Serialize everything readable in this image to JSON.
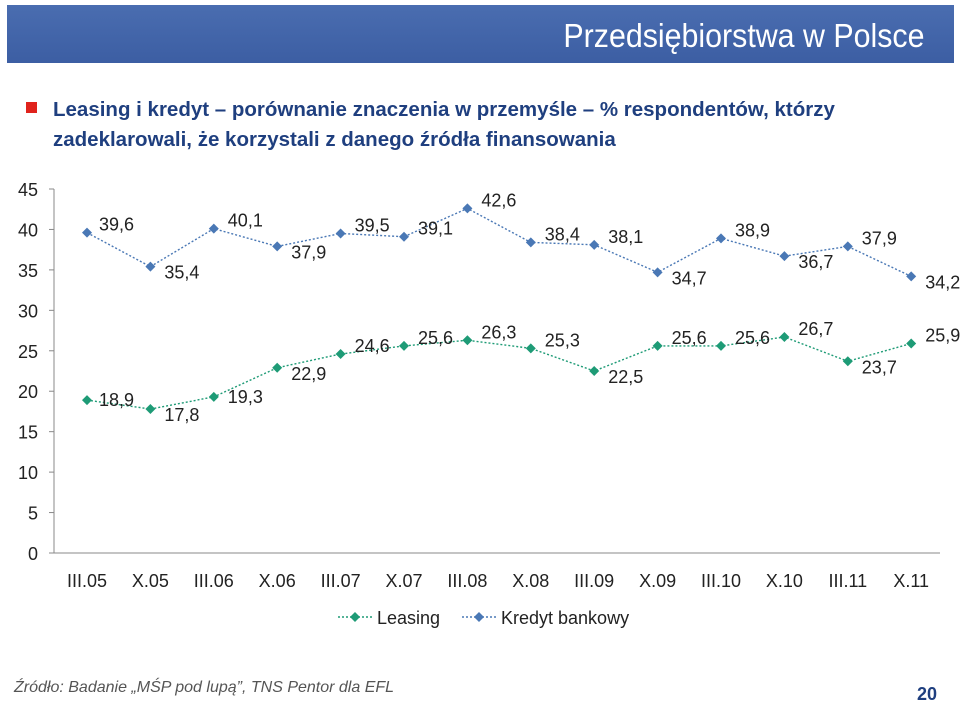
{
  "header": {
    "title": "Przedsiębiorstwa w Polsce",
    "color": "#3f62a8"
  },
  "subtitle": {
    "line1": "Leasing i kredyt – porównanie znaczenia w  przemyśle –  % respondentów, którzy",
    "line2": "zadeklarowali, że korzystali z danego źródła finansowania"
  },
  "chart_data": {
    "type": "line",
    "categories": [
      "III.05",
      "X.05",
      "III.06",
      "X.06",
      "III.07",
      "X.07",
      "III.08",
      "X.08",
      "III.09",
      "X.09",
      "III.10",
      "X.10",
      "III.11",
      "X.11"
    ],
    "series": [
      {
        "name": "Leasing",
        "color": "#1e9b76",
        "values": [
          18.9,
          17.8,
          19.3,
          22.9,
          24.6,
          25.6,
          26.3,
          25.3,
          22.5,
          25.6,
          25.6,
          26.7,
          23.7,
          25.9
        ],
        "labels": [
          "18,9",
          "17,8",
          "19,3",
          "22,9",
          "24,6",
          "25,6",
          "26,3",
          "25,3",
          "22,5",
          "25,6",
          "25,6",
          "26,7",
          "23,7",
          "25,9"
        ]
      },
      {
        "name": "Kredyt bankowy",
        "color": "#4a78b5",
        "values": [
          39.6,
          35.4,
          40.1,
          37.9,
          39.5,
          39.1,
          42.6,
          38.4,
          38.1,
          34.7,
          38.9,
          36.7,
          37.9,
          34.2
        ],
        "labels": [
          "39,6",
          "35,4",
          "40,1",
          "37,9",
          "39,5",
          "39,1",
          "42,6",
          "38,4",
          "38,1",
          "34,7",
          "38,9",
          "36,7",
          "37,9",
          "34,2"
        ]
      }
    ],
    "ylim": [
      0,
      45
    ],
    "yticks": [
      "0",
      "5",
      "10",
      "15",
      "20",
      "25",
      "30",
      "35",
      "40",
      "45"
    ],
    "grid": false,
    "legend": "bottom"
  },
  "footer": {
    "source": "Źródło: Badanie „MŚP pod lupą”, TNS Pentor dla EFL",
    "page_number": "20"
  }
}
